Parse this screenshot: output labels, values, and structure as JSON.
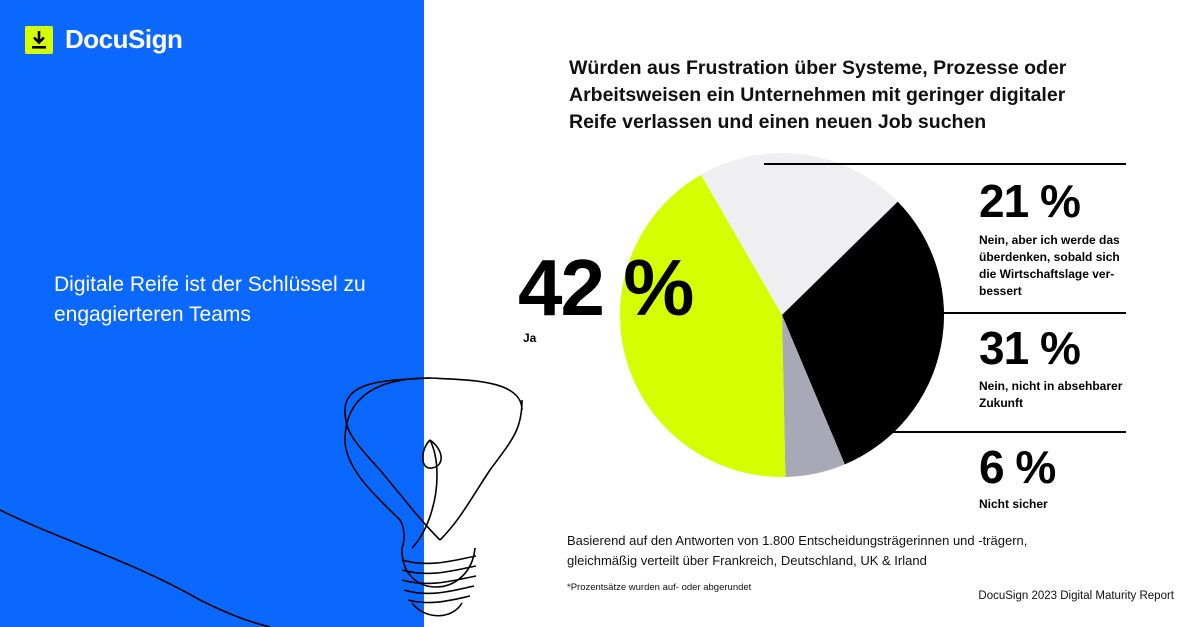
{
  "brand": {
    "name": "DocuSign"
  },
  "headline": "Digitale Reife ist der Schlüssel zu engagierteren Teams",
  "colors": {
    "panel_blue": "#0a68ff",
    "accent_lime": "#d5ff00",
    "slice_black": "#000000",
    "slice_gray": "#a9a8b6",
    "slice_light": "#efeff2"
  },
  "chart_data": {
    "type": "pie",
    "title": "Würden aus Frustration über Systeme, Prozesse oder Arbeitsweisen ein Unternehmen mit geringer digitaler Reife verlassen und einen neuen Job suchen",
    "series": [
      {
        "label": "Ja",
        "display": "42 %",
        "value": 42,
        "color": "#d5ff00"
      },
      {
        "label": "Nein, aber ich werde das überdenken, sobald sich die Wirtschaftslage verbessert",
        "display": "21 %",
        "value": 21,
        "color": "#efeff2"
      },
      {
        "label": "Nein, nicht in absehbarer Zukunft",
        "display": "31 %",
        "value": 31,
        "color": "#000000"
      },
      {
        "label": "Nicht sicher",
        "display": "6 %",
        "value": 6,
        "color": "#a9a8b6"
      }
    ]
  },
  "labels": {
    "ja": {
      "pct": "42 %",
      "text": "Ja"
    },
    "s21": {
      "pct": "21 %",
      "text": "Nein, aber ich werde das überdenken, sobald sich die Wirtschaftslage ver­bessert"
    },
    "s31": {
      "pct": "31 %",
      "text": "Nein, nicht in absehbarer Zukunft"
    },
    "s6": {
      "pct": "6 %",
      "text": "Nicht sicher"
    }
  },
  "footnote": "Basierend auf den Antworten von 1.800 Entscheidungsträgerinnen und -trägern, gleichmäßig verteilt über Frankreich, Deutschland, UK & Irland",
  "note": "*Prozentsätze wurden auf- oder abgerundet",
  "report": "DocuSign 2023 Digital Maturity Report"
}
